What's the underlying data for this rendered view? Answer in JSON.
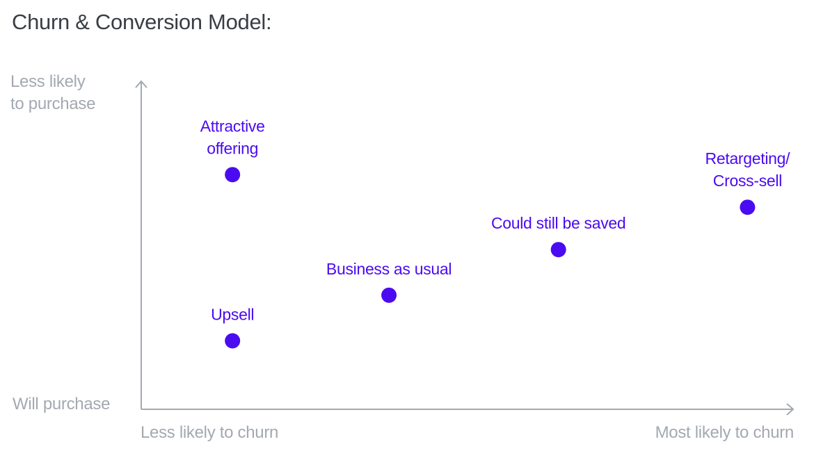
{
  "title": "Churn & Conversion Model:",
  "colors": {
    "accent": "#4b0bf0",
    "axis": "#a3a9b1",
    "title": "#3a3d44"
  },
  "axes": {
    "y_top_label": [
      "Less likely",
      "to purchase"
    ],
    "y_bottom_label": "Will purchase",
    "x_left_label": "Less likely to churn",
    "x_right_label": "Most likely to churn"
  },
  "chart_data": {
    "type": "scatter",
    "title": "Churn & Conversion Model:",
    "xlabel": "",
    "ylabel": "",
    "xlim": [
      0,
      10
    ],
    "ylim": [
      0,
      10
    ],
    "grid": false,
    "legend": "none",
    "points": [
      {
        "label": [
          "Attractive",
          "offering"
        ],
        "x": 1.4,
        "y": 7.2
      },
      {
        "label": [
          "Upsell"
        ],
        "x": 1.4,
        "y": 2.1
      },
      {
        "label": [
          "Business as usual"
        ],
        "x": 3.8,
        "y": 3.5
      },
      {
        "label": [
          "Could still be saved"
        ],
        "x": 6.4,
        "y": 4.9
      },
      {
        "label": [
          "Retargeting/",
          "Cross-sell"
        ],
        "x": 9.3,
        "y": 6.2
      }
    ]
  }
}
